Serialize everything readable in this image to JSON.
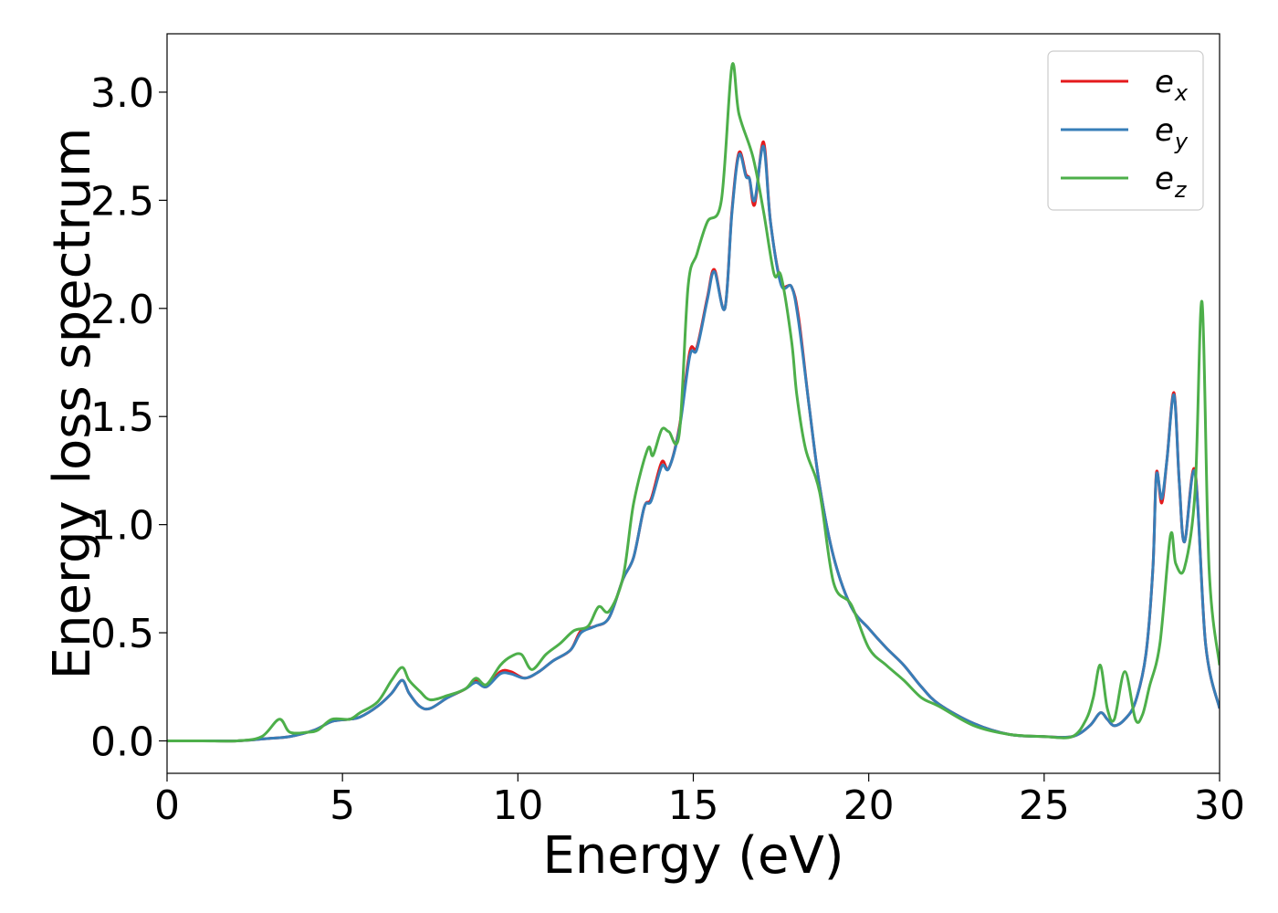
{
  "chart_data": {
    "type": "line",
    "title": "",
    "xlabel": "Energy (eV)",
    "ylabel": "Energy loss spectrum",
    "xlim": [
      0,
      30
    ],
    "ylim": [
      -0.15,
      3.27
    ],
    "xticks": [
      0,
      5,
      10,
      15,
      20,
      25,
      30
    ],
    "xtick_labels": [
      "0",
      "5",
      "10",
      "15",
      "20",
      "25",
      "30"
    ],
    "yticks": [
      0.0,
      0.5,
      1.0,
      1.5,
      2.0,
      2.5,
      3.0
    ],
    "ytick_labels": [
      "0.0",
      "0.5",
      "1.0",
      "1.5",
      "2.0",
      "2.5",
      "3.0"
    ],
    "grid": false,
    "legend_position": "top-right",
    "series": [
      {
        "name": "e_x",
        "label_base": "e",
        "label_sub": "x",
        "color": "#e41a1c",
        "x": [
          0,
          1,
          2,
          2.8,
          3.5,
          4.2,
          4.7,
          5.2,
          5.5,
          6.0,
          6.4,
          6.7,
          6.9,
          7.2,
          7.5,
          8.0,
          8.5,
          8.8,
          9.1,
          9.5,
          9.8,
          10.2,
          10.6,
          11.0,
          11.5,
          11.8,
          12.2,
          12.6,
          13.0,
          13.3,
          13.6,
          13.8,
          14.1,
          14.3,
          14.6,
          14.9,
          15.1,
          15.4,
          15.6,
          15.9,
          16.1,
          16.3,
          16.5,
          16.6,
          16.75,
          17.0,
          17.2,
          17.5,
          17.8,
          18.0,
          18.3,
          18.6,
          19.0,
          19.5,
          20.0,
          20.5,
          21.0,
          21.5,
          22.0,
          23.0,
          24.0,
          25.0,
          25.8,
          26.3,
          26.6,
          26.8,
          27.0,
          27.3,
          27.6,
          27.9,
          28.1,
          28.2,
          28.35,
          28.5,
          28.7,
          28.85,
          29.0,
          29.3,
          29.6,
          30.0
        ],
        "y": [
          0.0,
          0.0,
          0.0,
          0.01,
          0.02,
          0.05,
          0.09,
          0.1,
          0.11,
          0.16,
          0.22,
          0.28,
          0.22,
          0.16,
          0.15,
          0.2,
          0.24,
          0.28,
          0.25,
          0.32,
          0.32,
          0.29,
          0.32,
          0.37,
          0.42,
          0.51,
          0.53,
          0.57,
          0.75,
          0.85,
          1.08,
          1.12,
          1.29,
          1.26,
          1.45,
          1.8,
          1.82,
          2.05,
          2.18,
          2.0,
          2.45,
          2.72,
          2.62,
          2.6,
          2.48,
          2.77,
          2.4,
          2.12,
          2.1,
          1.96,
          1.55,
          1.18,
          0.85,
          0.62,
          0.52,
          0.43,
          0.35,
          0.25,
          0.17,
          0.08,
          0.03,
          0.02,
          0.02,
          0.07,
          0.13,
          0.1,
          0.07,
          0.1,
          0.18,
          0.4,
          0.8,
          1.24,
          1.1,
          1.3,
          1.61,
          1.2,
          0.92,
          1.25,
          0.45,
          0.15
        ]
      },
      {
        "name": "e_y",
        "label_base": "e",
        "label_sub": "y",
        "color": "#377eb8",
        "x": [
          0,
          1,
          2,
          2.8,
          3.5,
          4.2,
          4.7,
          5.2,
          5.5,
          6.0,
          6.4,
          6.7,
          6.9,
          7.2,
          7.5,
          8.0,
          8.5,
          8.8,
          9.1,
          9.5,
          9.8,
          10.2,
          10.6,
          11.0,
          11.5,
          11.8,
          12.2,
          12.6,
          13.0,
          13.3,
          13.6,
          13.8,
          14.1,
          14.3,
          14.6,
          14.9,
          15.1,
          15.4,
          15.6,
          15.9,
          16.1,
          16.3,
          16.5,
          16.6,
          16.75,
          17.0,
          17.2,
          17.5,
          17.8,
          18.0,
          18.3,
          18.6,
          19.0,
          19.5,
          20.0,
          20.5,
          21.0,
          21.5,
          22.0,
          23.0,
          24.0,
          25.0,
          25.8,
          26.3,
          26.6,
          26.8,
          27.0,
          27.3,
          27.6,
          27.9,
          28.1,
          28.2,
          28.35,
          28.5,
          28.7,
          28.85,
          29.0,
          29.3,
          29.6,
          30.0
        ],
        "y": [
          0.0,
          0.0,
          0.0,
          0.01,
          0.02,
          0.05,
          0.09,
          0.1,
          0.11,
          0.16,
          0.22,
          0.28,
          0.22,
          0.16,
          0.15,
          0.2,
          0.24,
          0.27,
          0.25,
          0.31,
          0.31,
          0.29,
          0.32,
          0.37,
          0.42,
          0.5,
          0.53,
          0.57,
          0.75,
          0.85,
          1.08,
          1.11,
          1.27,
          1.26,
          1.44,
          1.78,
          1.81,
          2.04,
          2.17,
          2.0,
          2.44,
          2.71,
          2.61,
          2.6,
          2.5,
          2.75,
          2.4,
          2.11,
          2.1,
          1.94,
          1.55,
          1.18,
          0.85,
          0.62,
          0.52,
          0.43,
          0.35,
          0.25,
          0.17,
          0.08,
          0.03,
          0.02,
          0.02,
          0.07,
          0.13,
          0.1,
          0.07,
          0.1,
          0.18,
          0.4,
          0.8,
          1.23,
          1.12,
          1.3,
          1.6,
          1.2,
          0.92,
          1.24,
          0.45,
          0.15
        ]
      },
      {
        "name": "e_z",
        "label_base": "e",
        "label_sub": "z",
        "color": "#4daf4a",
        "x": [
          0,
          1,
          2,
          2.7,
          3.2,
          3.5,
          4.0,
          4.3,
          4.7,
          5.2,
          5.5,
          6.0,
          6.4,
          6.7,
          6.9,
          7.2,
          7.5,
          8.0,
          8.5,
          8.8,
          9.1,
          9.5,
          9.8,
          10.1,
          10.4,
          10.8,
          11.2,
          11.6,
          12.0,
          12.3,
          12.6,
          13.0,
          13.3,
          13.7,
          13.85,
          14.1,
          14.3,
          14.6,
          14.85,
          15.1,
          15.4,
          15.8,
          16.1,
          16.3,
          16.7,
          17.0,
          17.3,
          17.5,
          17.8,
          17.95,
          18.2,
          18.6,
          19.0,
          19.5,
          20.0,
          20.5,
          21.0,
          21.5,
          22.0,
          23.0,
          24.0,
          25.0,
          25.8,
          26.2,
          26.4,
          26.6,
          26.8,
          27.0,
          27.3,
          27.6,
          27.8,
          28.0,
          28.3,
          28.6,
          28.75,
          29.0,
          29.3,
          29.5,
          29.7,
          30.0
        ],
        "y": [
          0.0,
          0.0,
          0.0,
          0.02,
          0.1,
          0.04,
          0.04,
          0.05,
          0.1,
          0.1,
          0.13,
          0.18,
          0.28,
          0.34,
          0.28,
          0.23,
          0.19,
          0.21,
          0.24,
          0.29,
          0.26,
          0.35,
          0.39,
          0.4,
          0.33,
          0.4,
          0.45,
          0.51,
          0.53,
          0.62,
          0.6,
          0.76,
          1.1,
          1.35,
          1.32,
          1.44,
          1.43,
          1.42,
          2.1,
          2.25,
          2.4,
          2.5,
          3.12,
          2.9,
          2.7,
          2.45,
          2.16,
          2.15,
          1.85,
          1.6,
          1.35,
          1.15,
          0.73,
          0.63,
          0.43,
          0.35,
          0.28,
          0.2,
          0.16,
          0.07,
          0.03,
          0.02,
          0.02,
          0.1,
          0.2,
          0.35,
          0.15,
          0.1,
          0.32,
          0.1,
          0.12,
          0.25,
          0.45,
          0.95,
          0.82,
          0.8,
          1.15,
          2.03,
          0.8,
          0.35
        ]
      }
    ]
  }
}
